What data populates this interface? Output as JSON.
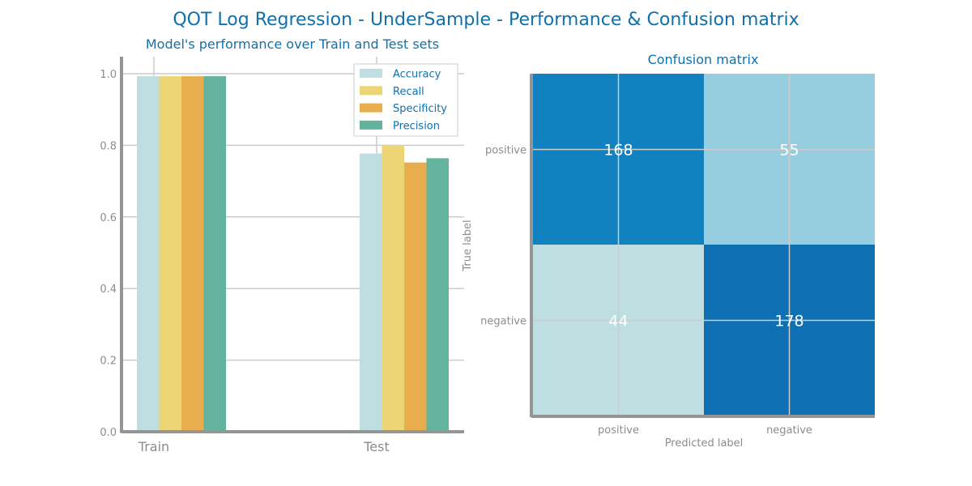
{
  "figure": {
    "title": "QOT Log Regression - UnderSample - Performance & Confusion matrix"
  },
  "chart_data": [
    {
      "type": "bar",
      "title": "Model's performance over Train and Test sets",
      "categories": [
        "Train",
        "Test"
      ],
      "series": [
        {
          "name": "Accuracy",
          "values": [
            0.993,
            0.777
          ],
          "color": "#bfdee2"
        },
        {
          "name": "Recall",
          "values": [
            0.993,
            0.8
          ],
          "color": "#ebd574"
        },
        {
          "name": "Specificity",
          "values": [
            0.993,
            0.752
          ],
          "color": "#e8ae4e"
        },
        {
          "name": "Precision",
          "values": [
            0.993,
            0.764
          ],
          "color": "#64b39f"
        }
      ],
      "ylim": [
        0,
        1.0
      ],
      "yticks": [
        "0.0",
        "0.2",
        "0.4",
        "0.6",
        "0.8",
        "1.0"
      ],
      "grid": true,
      "legend": "top-right"
    },
    {
      "type": "heatmap",
      "title": "Confusion matrix",
      "xlabel": "Predicted label",
      "ylabel": "True label",
      "x_categories": [
        "positive",
        "negative"
      ],
      "y_categories": [
        "positive",
        "negative"
      ],
      "values": [
        [
          168,
          55
        ],
        [
          44,
          178
        ]
      ],
      "colors": [
        [
          "#1181c0",
          "#96cddf"
        ],
        [
          "#bfdee2",
          "#0e6fb2"
        ]
      ]
    }
  ]
}
